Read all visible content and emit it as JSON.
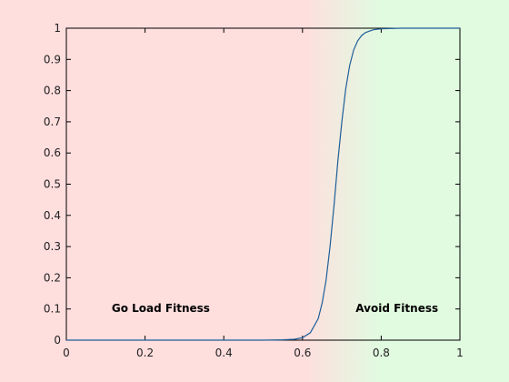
{
  "chart_data": {
    "type": "line",
    "title": "",
    "xlabel": "",
    "ylabel": "",
    "xlim": [
      0,
      1
    ],
    "ylim": [
      0,
      1
    ],
    "xticks": [
      0,
      0.2,
      0.4,
      0.6,
      0.8,
      1
    ],
    "xtick_labels": [
      "0",
      "0.2",
      "0.4",
      "0.6",
      "0.8",
      "1"
    ],
    "yticks": [
      0,
      0.1,
      0.2,
      0.3,
      0.4,
      0.5,
      0.6,
      0.7,
      0.8,
      0.9,
      1
    ],
    "ytick_labels": [
      "0",
      "0.1",
      "0.2",
      "0.3",
      "0.4",
      "0.5",
      "0.6",
      "0.7",
      "0.8",
      "0.9",
      "1"
    ],
    "grid": false,
    "legend": "none",
    "series": [
      {
        "x": [
          0,
          0.1,
          0.2,
          0.3,
          0.4,
          0.5,
          0.55,
          0.58,
          0.6,
          0.62,
          0.64,
          0.65,
          0.66,
          0.67,
          0.68,
          0.69,
          0.7,
          0.71,
          0.72,
          0.73,
          0.74,
          0.75,
          0.76,
          0.78,
          0.8,
          0.82,
          0.85,
          0.9,
          1
        ],
        "y": [
          0,
          0,
          0,
          0,
          0,
          0,
          0.001,
          0.003,
          0.008,
          0.024,
          0.069,
          0.119,
          0.193,
          0.3,
          0.43,
          0.576,
          0.7,
          0.807,
          0.881,
          0.93,
          0.959,
          0.976,
          0.986,
          0.995,
          0.998,
          0.999,
          1,
          1,
          1
        ],
        "color": "#1f5e99"
      }
    ],
    "annotations": [
      {
        "text": "Go Load Fitness",
        "x": 0.24,
        "y": 0.09
      },
      {
        "text": "Avoid Fitness",
        "x": 0.84,
        "y": 0.09
      }
    ],
    "background_regions": {
      "left_color": "#ffdede",
      "right_color": "#e0fbe0",
      "transition_start_x": 0.6,
      "transition_end_x": 0.8
    }
  }
}
